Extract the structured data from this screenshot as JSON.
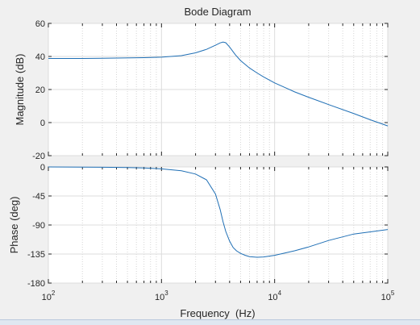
{
  "chart_data": [
    {
      "type": "line",
      "title": "Bode Diagram",
      "ylabel": "Magnitude (dB)",
      "xscale": "log",
      "xlim": [
        100,
        100000
      ],
      "ylim": [
        -20,
        60
      ],
      "yticks": [
        "-20",
        "0",
        "20",
        "40",
        "60"
      ],
      "grid": true,
      "series": [
        {
          "color": "#1f6fb5",
          "x": [
            100,
            200,
            400,
            700,
            1000,
            1500,
            2000,
            2500,
            3000,
            3300,
            3500,
            3700,
            4000,
            4500,
            5000,
            6000,
            7000,
            8000,
            10000,
            13000,
            15000,
            20000,
            30000,
            50000,
            70000,
            100000
          ],
          "y": [
            38.8,
            38.8,
            39.0,
            39.3,
            39.6,
            40.5,
            42.2,
            44.3,
            46.8,
            48.2,
            48.7,
            48.3,
            45.7,
            41.0,
            37.5,
            33.0,
            30.0,
            27.6,
            24.0,
            20.5,
            18.6,
            15.3,
            10.9,
            5.5,
            1.7,
            -2.0
          ]
        }
      ]
    },
    {
      "type": "line",
      "ylabel": "Phase (deg)",
      "xlabel": "Frequency  (Hz)",
      "xscale": "log",
      "xlim": [
        100,
        100000
      ],
      "ylim": [
        -180,
        0
      ],
      "yticks": [
        "-180",
        "-135",
        "-90",
        "-45",
        "0"
      ],
      "xticks": [
        {
          "base": "10",
          "exp": "2"
        },
        {
          "base": "10",
          "exp": "3"
        },
        {
          "base": "10",
          "exp": "4"
        },
        {
          "base": "10",
          "exp": "5"
        }
      ],
      "grid": true,
      "series": [
        {
          "color": "#1f6fb5",
          "x": [
            100,
            300,
            500,
            700,
            1000,
            1500,
            2000,
            2500,
            3000,
            3300,
            3500,
            3700,
            4000,
            4300,
            4600,
            5000,
            5500,
            6000,
            7000,
            8000,
            10000,
            15000,
            20000,
            30000,
            50000,
            100000
          ],
          "y": [
            0,
            -0.5,
            -1,
            -1.5,
            -3,
            -6,
            -11,
            -20,
            -42,
            -66,
            -85,
            -100,
            -115,
            -125,
            -130,
            -134,
            -137,
            -139,
            -140,
            -139.5,
            -137,
            -130,
            -124,
            -114,
            -104,
            -97
          ]
        }
      ]
    }
  ]
}
